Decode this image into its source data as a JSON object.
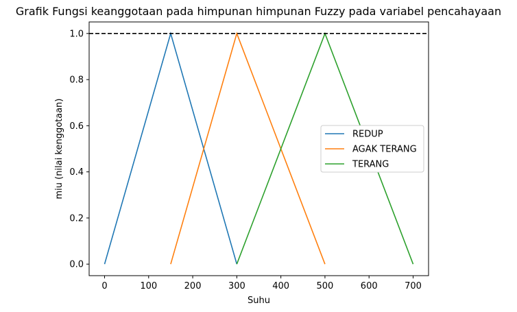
{
  "chart_data": {
    "type": "line",
    "title": "Grafik Fungsi keanggotaan pada himpunan himpunan Fuzzy pada variabel pencahayaan",
    "xlabel": "Suhu",
    "ylabel": "miu (nilai kenggotaan)",
    "xlim": [
      -35,
      735
    ],
    "ylim": [
      -0.05,
      1.05
    ],
    "xticks": [
      0,
      100,
      200,
      300,
      400,
      500,
      600,
      700
    ],
    "xtick_labels": [
      "0",
      "100",
      "200",
      "300",
      "400",
      "500",
      "600",
      "700"
    ],
    "yticks": [
      0.0,
      0.2,
      0.4,
      0.6,
      0.8,
      1.0
    ],
    "ytick_labels": [
      "0.0",
      "0.2",
      "0.4",
      "0.6",
      "0.8",
      "1.0"
    ],
    "grid": false,
    "legend_position": "center-right",
    "reference_line": {
      "y": 1.0,
      "style": "dashed",
      "color": "#000000"
    },
    "series": [
      {
        "name": "REDUP",
        "color": "#1f77b4",
        "x": [
          0,
          150,
          300
        ],
        "y": [
          0,
          1,
          0
        ]
      },
      {
        "name": "AGAK TERANG",
        "color": "#ff7f0e",
        "x": [
          150,
          300,
          500
        ],
        "y": [
          0,
          1,
          0
        ]
      },
      {
        "name": "TERANG",
        "color": "#2ca02c",
        "x": [
          300,
          500,
          700
        ],
        "y": [
          0,
          1,
          0
        ]
      }
    ]
  }
}
